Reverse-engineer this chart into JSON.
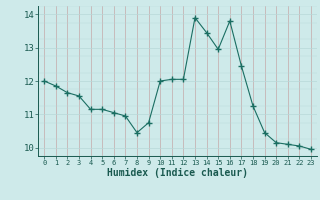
{
  "x": [
    0,
    1,
    2,
    3,
    4,
    5,
    6,
    7,
    8,
    9,
    10,
    11,
    12,
    13,
    14,
    15,
    16,
    17,
    18,
    19,
    20,
    21,
    22,
    23
  ],
  "y": [
    12.0,
    11.85,
    11.65,
    11.55,
    11.15,
    11.15,
    11.05,
    10.95,
    10.45,
    10.75,
    12.0,
    12.05,
    12.05,
    13.9,
    13.45,
    12.95,
    13.8,
    12.45,
    11.25,
    10.45,
    10.15,
    10.1,
    10.05,
    9.95
  ],
  "line_color": "#1a6e62",
  "marker_color": "#1a6e62",
  "bg_color": "#ceeaea",
  "grid_color_v": "#c4a8a8",
  "grid_color_h": "#b8d8d8",
  "xlabel": "Humidex (Indice chaleur)",
  "xlim": [
    -0.5,
    23.5
  ],
  "ylim": [
    9.75,
    14.25
  ],
  "yticks": [
    10,
    11,
    12,
    13,
    14
  ],
  "xticks": [
    0,
    1,
    2,
    3,
    4,
    5,
    6,
    7,
    8,
    9,
    10,
    11,
    12,
    13,
    14,
    15,
    16,
    17,
    18,
    19,
    20,
    21,
    22,
    23
  ],
  "tick_color": "#1a5a50",
  "label_color": "#1a5a50"
}
